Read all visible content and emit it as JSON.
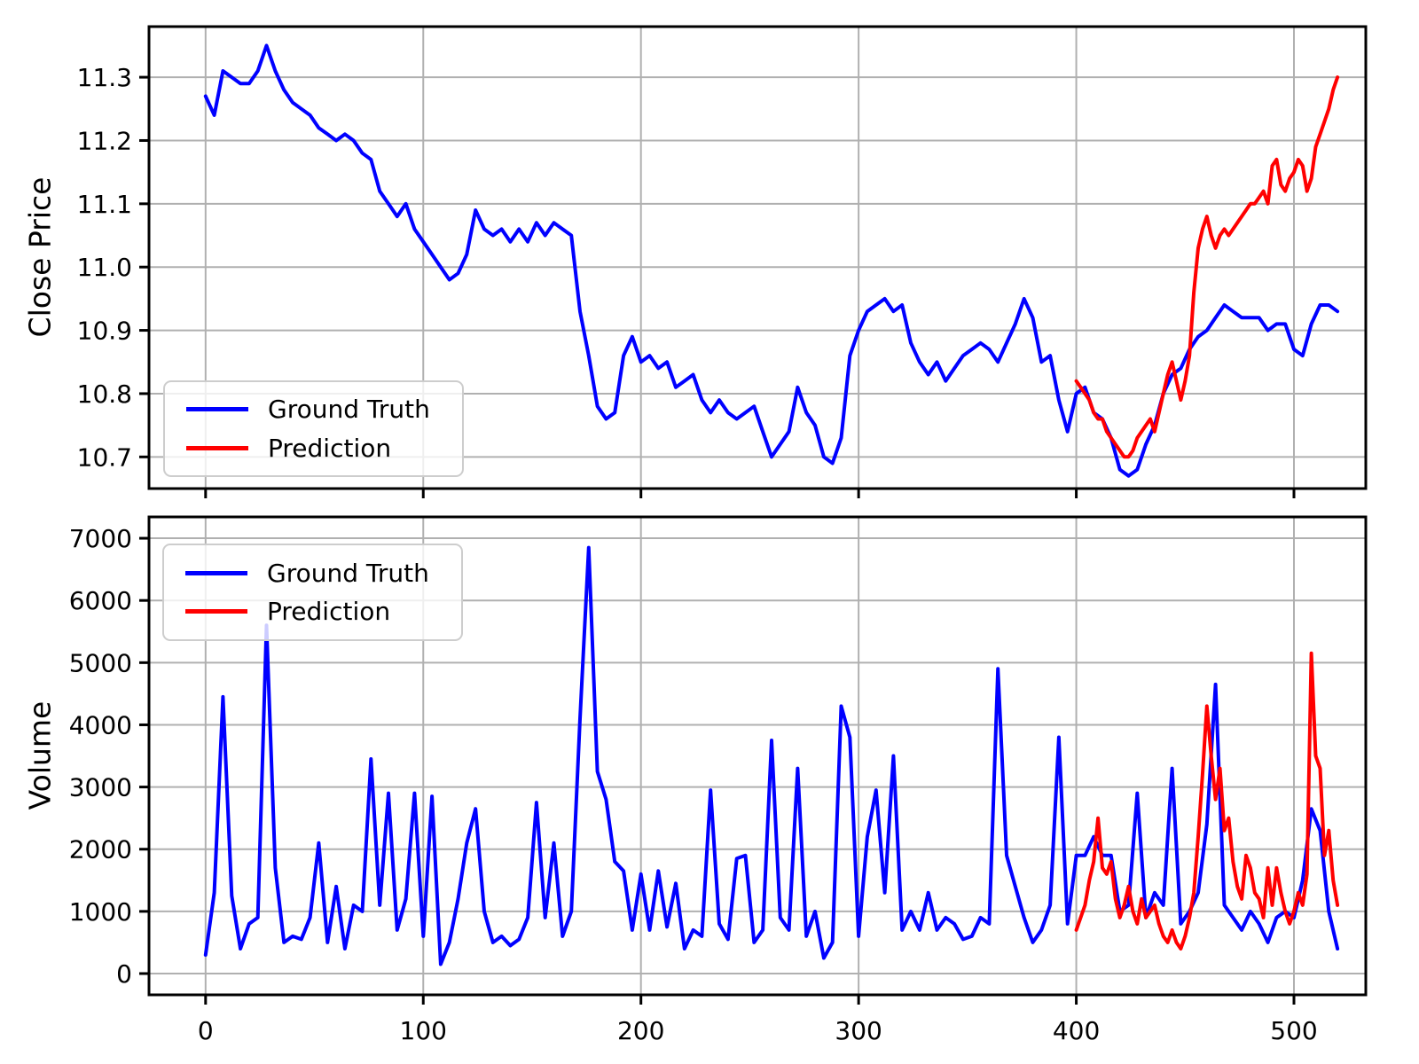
{
  "figure": {
    "background": "#ffffff"
  },
  "style": {
    "grid_color": "#b0b0b0",
    "spine_color": "#000000",
    "ground_truth_color": "#0000ff",
    "prediction_color": "#ff0000"
  },
  "legend": {
    "entries": [
      {
        "label": "Ground Truth",
        "color": "#0000ff"
      },
      {
        "label": "Prediction",
        "color": "#ff0000"
      }
    ]
  },
  "chart_data": [
    {
      "type": "line",
      "title": "",
      "xlabel": "",
      "ylabel": "Close Price",
      "xlim": [
        -26,
        533
      ],
      "ylim": [
        10.65,
        11.38
      ],
      "xticks": [
        0,
        100,
        200,
        300,
        400,
        500
      ],
      "yticks": [
        10.7,
        10.8,
        10.9,
        11.0,
        11.1,
        11.2,
        11.3
      ],
      "ytick_decimals": 1,
      "show_xtick_labels": false,
      "grid": true,
      "legend_position": "lower left",
      "series": [
        {
          "name": "Ground Truth",
          "color": "#0000ff",
          "x_start": 0,
          "x_step": 4,
          "values": [
            11.27,
            11.24,
            11.31,
            11.3,
            11.29,
            11.29,
            11.31,
            11.35,
            11.31,
            11.28,
            11.26,
            11.25,
            11.24,
            11.22,
            11.21,
            11.2,
            11.21,
            11.2,
            11.18,
            11.17,
            11.12,
            11.1,
            11.08,
            11.1,
            11.06,
            11.04,
            11.02,
            11.0,
            10.98,
            10.99,
            11.02,
            11.09,
            11.06,
            11.05,
            11.06,
            11.04,
            11.06,
            11.04,
            11.07,
            11.05,
            11.07,
            11.06,
            11.05,
            10.93,
            10.86,
            10.78,
            10.76,
            10.77,
            10.86,
            10.89,
            10.85,
            10.86,
            10.84,
            10.85,
            10.81,
            10.82,
            10.83,
            10.79,
            10.77,
            10.79,
            10.77,
            10.76,
            10.77,
            10.78,
            10.74,
            10.7,
            10.72,
            10.74,
            10.81,
            10.77,
            10.75,
            10.7,
            10.69,
            10.73,
            10.86,
            10.9,
            10.93,
            10.94,
            10.95,
            10.93,
            10.94,
            10.88,
            10.85,
            10.83,
            10.85,
            10.82,
            10.84,
            10.86,
            10.87,
            10.88,
            10.87,
            10.85,
            10.88,
            10.91,
            10.95,
            10.92,
            10.85,
            10.86,
            10.79,
            10.74,
            10.8,
            10.81,
            10.77,
            10.76,
            10.73,
            10.68,
            10.67,
            10.68,
            10.72,
            10.75,
            10.8,
            10.83,
            10.84,
            10.87,
            10.89,
            10.9,
            10.92,
            10.94,
            10.93,
            10.92,
            10.92,
            10.92,
            10.9,
            10.91,
            10.91,
            10.87,
            10.86,
            10.91,
            10.94,
            10.94,
            10.93
          ]
        },
        {
          "name": "Prediction",
          "color": "#ff0000",
          "x_start": 400,
          "x_step": 2,
          "values": [
            10.82,
            10.81,
            10.8,
            10.79,
            10.77,
            10.76,
            10.76,
            10.74,
            10.73,
            10.72,
            10.71,
            10.7,
            10.7,
            10.71,
            10.73,
            10.74,
            10.75,
            10.76,
            10.74,
            10.77,
            10.8,
            10.83,
            10.85,
            10.82,
            10.79,
            10.82,
            10.86,
            10.96,
            11.03,
            11.06,
            11.08,
            11.05,
            11.03,
            11.05,
            11.06,
            11.05,
            11.06,
            11.07,
            11.08,
            11.09,
            11.1,
            11.1,
            11.11,
            11.12,
            11.1,
            11.16,
            11.17,
            11.13,
            11.12,
            11.14,
            11.15,
            11.17,
            11.16,
            11.12,
            11.14,
            11.19,
            11.21,
            11.23,
            11.25,
            11.28,
            11.3
          ]
        }
      ]
    },
    {
      "type": "line",
      "title": "",
      "xlabel": "",
      "ylabel": "Volume",
      "xlim": [
        -26,
        533
      ],
      "ylim": [
        -342,
        7343
      ],
      "xticks": [
        0,
        100,
        200,
        300,
        400,
        500
      ],
      "yticks": [
        0,
        1000,
        2000,
        3000,
        4000,
        5000,
        6000,
        7000
      ],
      "ytick_decimals": 0,
      "show_xtick_labels": true,
      "grid": true,
      "legend_position": "upper left",
      "series": [
        {
          "name": "Ground Truth",
          "color": "#0000ff",
          "x_start": 0,
          "x_step": 4,
          "values": [
            300,
            1300,
            4450,
            1250,
            400,
            800,
            900,
            5600,
            1700,
            500,
            600,
            550,
            900,
            2100,
            500,
            1400,
            400,
            1100,
            1000,
            3450,
            1100,
            2900,
            700,
            1200,
            2900,
            600,
            2850,
            150,
            500,
            1200,
            2100,
            2650,
            1000,
            500,
            600,
            450,
            550,
            900,
            2750,
            900,
            2100,
            600,
            1000,
            4100,
            6850,
            3250,
            2800,
            1800,
            1650,
            700,
            1600,
            700,
            1650,
            750,
            1450,
            400,
            700,
            600,
            2950,
            800,
            550,
            1850,
            1900,
            500,
            700,
            3750,
            900,
            700,
            3300,
            600,
            1000,
            250,
            500,
            4300,
            3800,
            600,
            2200,
            2950,
            1300,
            3500,
            700,
            1000,
            700,
            1300,
            700,
            900,
            800,
            550,
            600,
            900,
            800,
            4900,
            1900,
            1400,
            900,
            500,
            700,
            1100,
            3800,
            800,
            1900,
            1900,
            2200,
            1900,
            1900,
            1000,
            1100,
            2900,
            900,
            1300,
            1100,
            3300,
            800,
            1000,
            1300,
            2400,
            4650,
            1100,
            900,
            700,
            1000,
            800,
            500,
            900,
            1000,
            900,
            1500,
            2650,
            2300,
            1000,
            400
          ]
        },
        {
          "name": "Prediction",
          "color": "#ff0000",
          "x_start": 400,
          "x_step": 2,
          "values": [
            700,
            900,
            1100,
            1500,
            1800,
            2500,
            1700,
            1600,
            1800,
            1200,
            900,
            1100,
            1400,
            1000,
            800,
            1200,
            900,
            1000,
            1100,
            800,
            600,
            500,
            700,
            500,
            400,
            600,
            900,
            1300,
            2200,
            3200,
            4300,
            3500,
            2800,
            3300,
            2300,
            2500,
            1800,
            1400,
            1200,
            1900,
            1700,
            1300,
            1200,
            900,
            1700,
            1100,
            1700,
            1300,
            1000,
            800,
            1000,
            1300,
            1100,
            1600,
            5150,
            3500,
            3300,
            1900,
            2300,
            1500,
            1100
          ]
        }
      ]
    }
  ]
}
